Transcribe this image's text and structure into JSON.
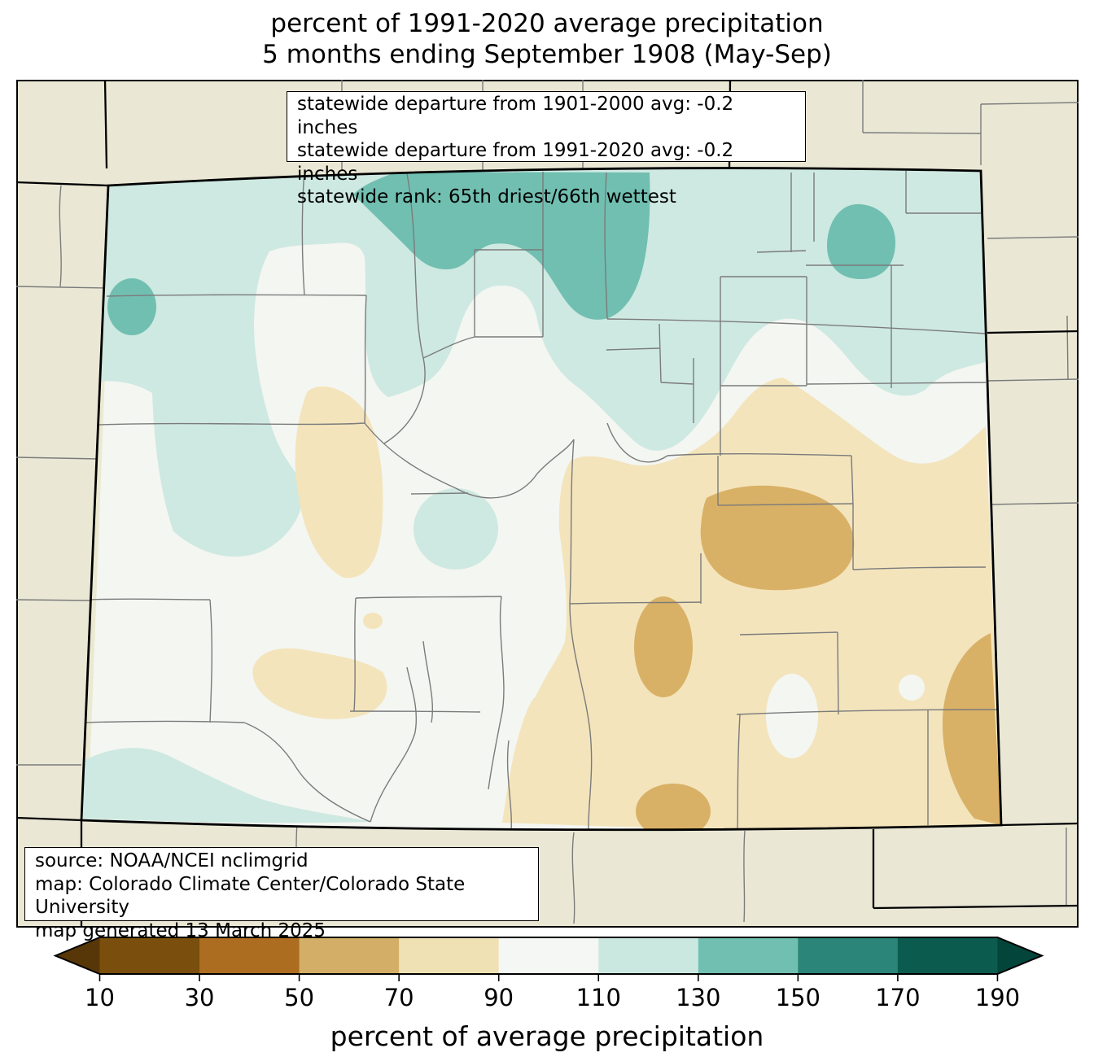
{
  "title": {
    "line1": "percent of 1991-2020 average precipitation",
    "line2": "5 months ending September 1908 (May-Sep)"
  },
  "stats_box": {
    "lines": [
      "statewide departure from 1901-2000 avg: -0.2 inches",
      "statewide departure from 1991-2020 avg: -0.2 inches",
      "statewide rank: 65th driest/66th wettest"
    ]
  },
  "source_box": {
    "lines": [
      "source: NOAA/NCEI nclimgrid",
      "map: Colorado Climate Center/Colorado State University",
      "map generated 13 March 2025"
    ]
  },
  "colorbar": {
    "axis_label": "percent of average precipitation",
    "tick_labels": [
      "10",
      "30",
      "50",
      "70",
      "90",
      "110",
      "130",
      "150",
      "170",
      "190"
    ],
    "segment_colors": [
      "#7a4e0c",
      "#ad6d20",
      "#d3ae67",
      "#f0e1b4",
      "#f5f7f4",
      "#cbe8e0",
      "#71bfb1",
      "#2b8578",
      "#0c5b4f"
    ],
    "under_arrow_color": "#573608",
    "over_arrow_color": "#03453a"
  },
  "map": {
    "palette": {
      "outside_land": "#eae8d5",
      "percent_90_110": "#f4f6f2",
      "percent_110_130": "#cee9e1",
      "percent_130_150": "#71bfb1",
      "percent_70_90": "#f3e4bc",
      "percent_50_70": "#d9b166",
      "county_line": "#7b7b7b",
      "state_border": "#000000",
      "west_edge_strip": "#ece9d2"
    }
  }
}
